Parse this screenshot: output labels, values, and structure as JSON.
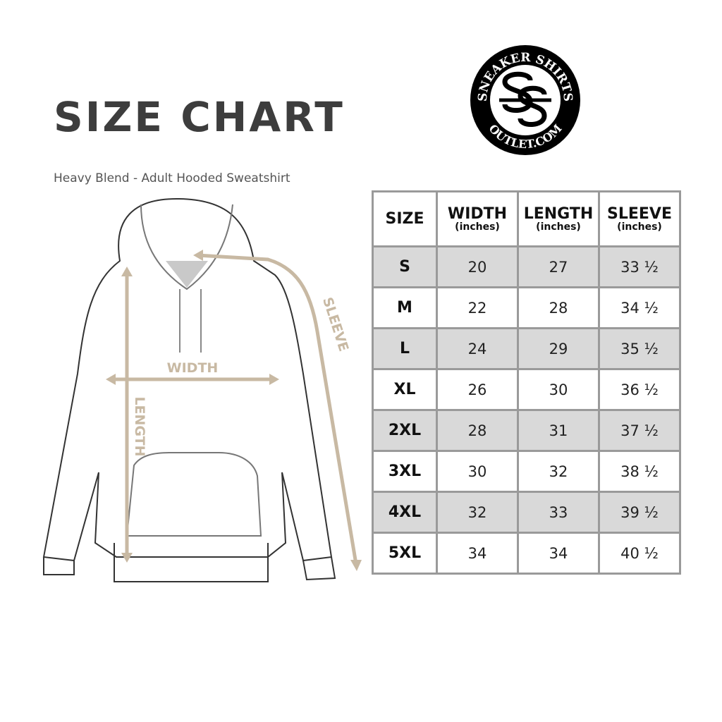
{
  "title": "SIZE CHART",
  "subtitle": "Heavy Blend - Adult Hooded Sweatshirt",
  "logo": {
    "text_top": "SNEAKER SHIRTS",
    "text_bottom": "OUTLET.COM",
    "monogram": "SS"
  },
  "diagram": {
    "width_label": "WIDTH",
    "length_label": "LENGTH",
    "sleeve_label": "SLEEVE",
    "measure_color": "#c8b9a3"
  },
  "table": {
    "headers": [
      {
        "label": "SIZE",
        "unit": ""
      },
      {
        "label": "WIDTH",
        "unit": "(inches)"
      },
      {
        "label": "LENGTH",
        "unit": "(inches)"
      },
      {
        "label": "SLEEVE",
        "unit": "(inches)"
      }
    ],
    "rows": [
      [
        "S",
        "20",
        "27",
        "33 ½"
      ],
      [
        "M",
        "22",
        "28",
        "34 ½"
      ],
      [
        "L",
        "24",
        "29",
        "35 ½"
      ],
      [
        "XL",
        "26",
        "30",
        "36 ½"
      ],
      [
        "2XL",
        "28",
        "31",
        "37 ½"
      ],
      [
        "3XL",
        "30",
        "32",
        "38 ½"
      ],
      [
        "4XL",
        "32",
        "33",
        "39 ½"
      ],
      [
        "5XL",
        "34",
        "34",
        "40 ½"
      ]
    ]
  }
}
